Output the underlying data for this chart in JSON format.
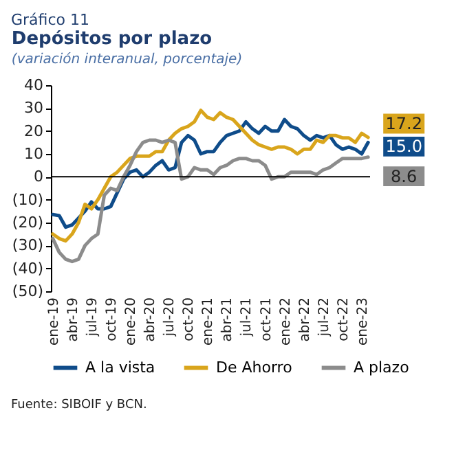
{
  "chart_data": {
    "type": "line",
    "title": "Depósitos por plazo",
    "subtitle": "(variación interanual, porcentaje)",
    "annotations": [
      "Gráfico 11",
      "Fuente: SIBOIF y BCN."
    ],
    "categories": [
      "ene-19",
      null,
      null,
      "abr-19",
      null,
      null,
      "jul-19",
      null,
      null,
      "oct-19",
      null,
      null,
      "ene-20",
      null,
      null,
      "abr-20",
      null,
      null,
      "jul-20",
      null,
      null,
      "oct-20",
      null,
      null,
      "ene-21",
      null,
      null,
      "abr-21",
      null,
      null,
      "jul-21",
      null,
      null,
      "oct-21",
      null,
      null,
      "ene-22",
      null,
      null,
      "abr-22",
      null,
      null,
      "jul-22",
      null,
      null,
      "oct-22",
      null,
      null,
      "ene-23",
      null
    ],
    "series": [
      {
        "name": "A la vista",
        "color": "#0f4c8a",
        "values": [
          -16.5,
          -17,
          -22,
          -21,
          -18,
          -15,
          -11,
          -14,
          -14,
          -13,
          -7,
          -1,
          2,
          3,
          0,
          2,
          5,
          7,
          3,
          4,
          15,
          18,
          16,
          10,
          11,
          11,
          15,
          18,
          19,
          20,
          24,
          21,
          19,
          22,
          20,
          20,
          25,
          22,
          21,
          18,
          16,
          18,
          17,
          18,
          14,
          12,
          13,
          12,
          10,
          15.0
        ],
        "value_labels": [
          null,
          null,
          null,
          null,
          null,
          null,
          null,
          null,
          null,
          null,
          null,
          null,
          null,
          null,
          null,
          null,
          null,
          null,
          null,
          null,
          null,
          null,
          null,
          null,
          null,
          null,
          null,
          null,
          null,
          null,
          null,
          null,
          null,
          null,
          null,
          null,
          null,
          null,
          null,
          null,
          null,
          null,
          null,
          null,
          null,
          null,
          null,
          null,
          null,
          "15.0"
        ]
      },
      {
        "name": "De Ahorro",
        "color": "#d9a51c",
        "values": [
          -25,
          -27,
          -28,
          -25,
          -20,
          -12,
          -14,
          -10,
          -5,
          0,
          2,
          5,
          8,
          9,
          9,
          9,
          11,
          11,
          16,
          19,
          21,
          22,
          24,
          29,
          26,
          25,
          28,
          26,
          25,
          22,
          19,
          16,
          14,
          13,
          12,
          13,
          13,
          12,
          10,
          12,
          12,
          16,
          15,
          18,
          18,
          17,
          17,
          15,
          19,
          17.2
        ],
        "value_labels": [
          null,
          null,
          null,
          null,
          null,
          null,
          null,
          null,
          null,
          null,
          null,
          null,
          null,
          null,
          null,
          null,
          null,
          null,
          null,
          null,
          null,
          null,
          null,
          null,
          null,
          null,
          null,
          null,
          null,
          null,
          null,
          null,
          null,
          null,
          null,
          null,
          null,
          null,
          null,
          null,
          null,
          null,
          null,
          null,
          null,
          null,
          null,
          null,
          null,
          "17.2"
        ]
      },
      {
        "name": "A plazo",
        "color": "#8c8c8c",
        "values": [
          -27,
          -33,
          -36,
          -37,
          -36,
          -30,
          -27,
          -25,
          -8,
          -5,
          -6,
          0,
          5,
          11,
          15,
          16,
          16,
          15,
          16,
          15,
          -1,
          0,
          4,
          3,
          3,
          1,
          4,
          5,
          7,
          8,
          8,
          7,
          7,
          5,
          -1,
          0,
          0,
          2,
          2,
          2,
          2,
          1,
          3,
          4,
          6,
          8,
          8,
          8,
          8,
          8.6
        ],
        "value_labels": [
          null,
          null,
          null,
          null,
          null,
          null,
          null,
          null,
          null,
          null,
          null,
          null,
          null,
          null,
          null,
          null,
          null,
          null,
          null,
          null,
          null,
          null,
          null,
          null,
          null,
          null,
          null,
          null,
          null,
          null,
          null,
          null,
          null,
          null,
          null,
          null,
          null,
          null,
          null,
          null,
          null,
          null,
          null,
          null,
          null,
          null,
          null,
          null,
          null,
          "8.6"
        ]
      }
    ],
    "ylim": [
      -50,
      40
    ],
    "yticks": [
      40,
      30,
      20,
      10,
      0,
      {
        "value": -10,
        "label": "(10)"
      },
      {
        "value": -20,
        "label": "(20)"
      },
      {
        "value": -30,
        "label": "(30)"
      },
      {
        "value": -40,
        "label": "(40)"
      },
      {
        "value": -50,
        "label": "(50)"
      }
    ],
    "ref_lines": [
      {
        "axis": "y",
        "value": 0,
        "color": "#000000"
      }
    ],
    "legend": "bottom",
    "grid": false,
    "line_style": "solid"
  }
}
